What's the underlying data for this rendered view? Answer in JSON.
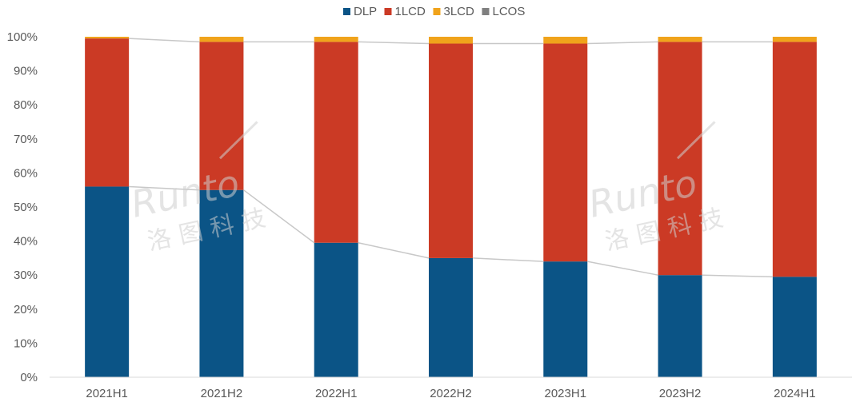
{
  "chart_data": {
    "type": "bar",
    "stacked": true,
    "categories": [
      "2021H1",
      "2021H2",
      "2022H1",
      "2022H2",
      "2023H1",
      "2023H2",
      "2024H1"
    ],
    "series": [
      {
        "name": "DLP",
        "color": "#0b5486",
        "values": [
          56.0,
          55.0,
          39.5,
          35.0,
          34.0,
          30.0,
          29.5
        ]
      },
      {
        "name": "1LCD",
        "color": "#cb3a25",
        "values": [
          43.5,
          43.5,
          59.0,
          63.0,
          64.0,
          68.5,
          69.0
        ]
      },
      {
        "name": "3LCD",
        "color": "#f0a31b",
        "values": [
          0.5,
          1.5,
          1.5,
          2.0,
          2.0,
          1.5,
          1.5
        ]
      },
      {
        "name": "LCOS",
        "color": "#7f7f7f",
        "values": [
          0.0,
          0.0,
          0.0,
          0.0,
          0.0,
          0.0,
          0.0
        ]
      }
    ],
    "y_ticks": [
      "0%",
      "10%",
      "20%",
      "30%",
      "40%",
      "50%",
      "60%",
      "70%",
      "80%",
      "90%",
      "100%"
    ],
    "ylim": [
      0,
      100
    ],
    "title": "",
    "xlabel": "",
    "ylabel": "",
    "legend_position": "top-center",
    "grid": false
  },
  "watermark": {
    "brand_latin": "Runto",
    "brand_cn": "洛图科技"
  }
}
